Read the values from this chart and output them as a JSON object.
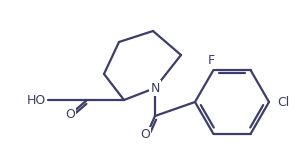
{
  "bg_color": "#ffffff",
  "line_color": "#3d3d6b",
  "line_width": 1.6,
  "font_size": 9,
  "N_label": "N",
  "F_label": "F",
  "Cl_label": "Cl",
  "HO_label": "HO",
  "O_label": "O"
}
